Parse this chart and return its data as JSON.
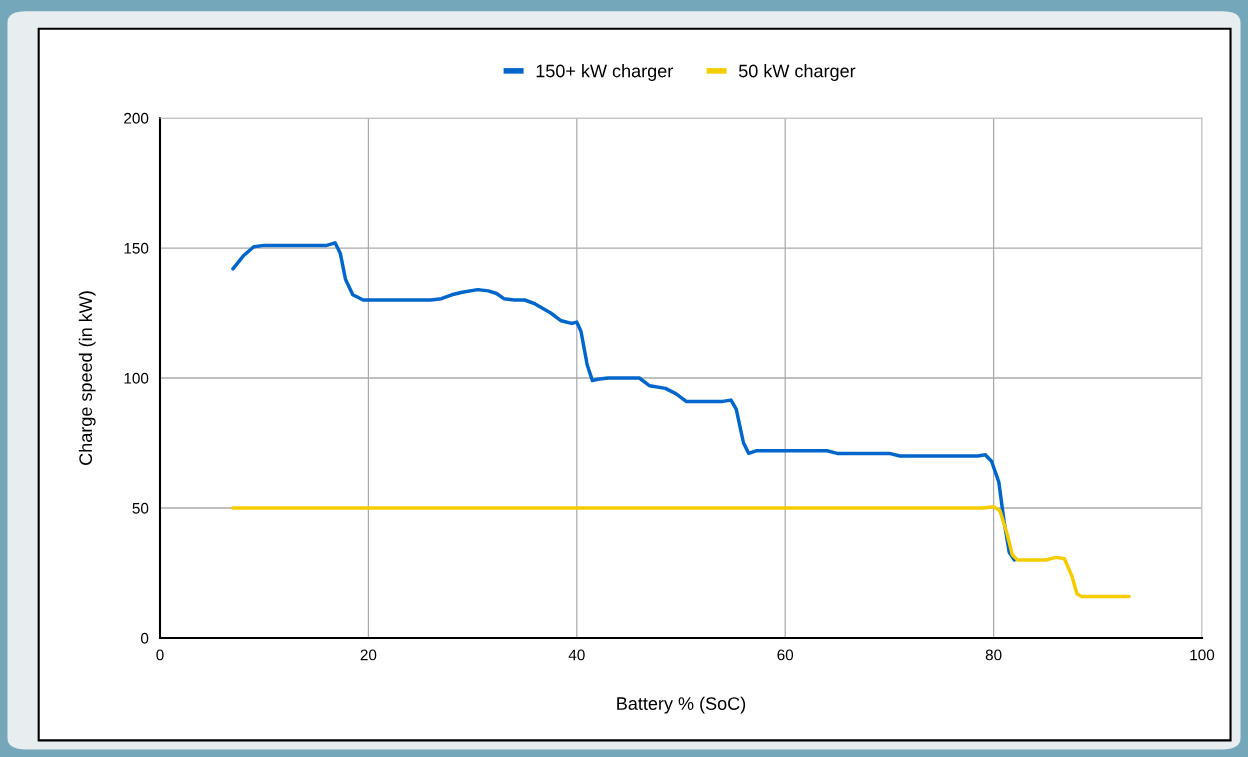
{
  "chart_data": {
    "type": "line",
    "xlabel": "Battery % (SoC)",
    "ylabel": "Charge speed (in kW)",
    "xlim": [
      0,
      100
    ],
    "xticks": [
      0,
      20,
      40,
      60,
      80,
      100
    ],
    "ylim": [
      0,
      200
    ],
    "yticks": [
      0,
      50,
      100,
      150,
      200
    ],
    "grid": true,
    "legend": "top",
    "marker": "none",
    "line_style": "solid",
    "series": [
      {
        "name": "150+ kW charger",
        "color": "#0066cc",
        "x": [
          7.0,
          8,
          9,
          10,
          12,
          16,
          16.8,
          17.3,
          17.8,
          18.5,
          19.5,
          22,
          26,
          27,
          28,
          29,
          30.5,
          31.5,
          32.3,
          33,
          34,
          35,
          36,
          37.5,
          38.5,
          39.5,
          40,
          40.4,
          41,
          41.5,
          42,
          43,
          45,
          46,
          47,
          48.5,
          49.5,
          50.5,
          52,
          54,
          54.8,
          55.3,
          56,
          56.5,
          57.2,
          60,
          64,
          65,
          67,
          70,
          71,
          75,
          78.5,
          79.2,
          79.8,
          80.5,
          81,
          81.5,
          82
        ],
        "values": [
          142,
          147,
          150.5,
          151,
          151,
          151,
          152,
          148,
          138,
          132,
          130,
          130,
          130,
          130.5,
          132,
          133,
          134,
          133.5,
          132.5,
          130.5,
          130,
          130,
          128.5,
          125,
          122,
          121,
          121.5,
          118,
          105,
          99,
          99.5,
          100,
          100,
          100,
          97,
          96,
          94,
          91,
          91,
          91,
          91.5,
          88,
          75,
          71,
          72,
          72,
          72,
          71,
          71,
          71,
          70,
          70,
          70,
          70.5,
          68,
          60,
          45,
          33,
          30
        ]
      },
      {
        "name": "50 kW charger",
        "color": "#f5cc00",
        "x": [
          7,
          79,
          80,
          80.6,
          81.3,
          81.8,
          82.3,
          83,
          85,
          86,
          86.8,
          87.5,
          88,
          88.4,
          89,
          93
        ],
        "values": [
          50,
          50,
          50.5,
          49,
          40,
          32,
          30,
          30,
          30,
          31,
          30.5,
          24,
          17,
          16,
          16,
          16
        ]
      }
    ]
  }
}
